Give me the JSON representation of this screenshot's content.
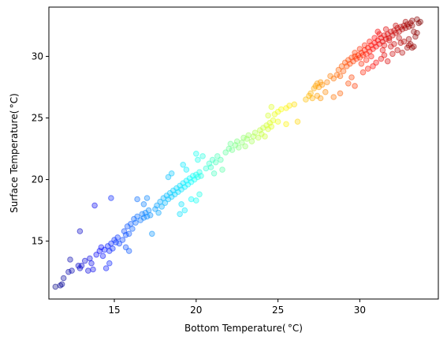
{
  "chart_data": {
    "type": "scatter",
    "xlabel": "Bottom Temperature( °C)",
    "ylabel": "Surface Temperature( °C)",
    "xlim": [
      11.0,
      34.8
    ],
    "ylim": [
      10.3,
      34.0
    ],
    "xticks": [
      15,
      20,
      25,
      30
    ],
    "yticks": [
      15,
      20,
      25,
      30
    ],
    "grid": false,
    "colormap": "jet",
    "color_by": "x",
    "color_range": [
      11.3,
      33.7
    ],
    "points": [
      [
        11.4,
        11.3
      ],
      [
        11.7,
        11.4
      ],
      [
        11.8,
        11.5
      ],
      [
        11.9,
        12.0
      ],
      [
        12.2,
        12.5
      ],
      [
        12.4,
        12.6
      ],
      [
        12.3,
        13.5
      ],
      [
        12.8,
        13.0
      ],
      [
        12.9,
        12.8
      ],
      [
        13.0,
        13.0
      ],
      [
        13.2,
        13.4
      ],
      [
        13.4,
        12.6
      ],
      [
        13.6,
        13.2
      ],
      [
        13.7,
        12.7
      ],
      [
        13.5,
        13.6
      ],
      [
        13.9,
        13.9
      ],
      [
        14.1,
        14.2
      ],
      [
        14.2,
        14.5
      ],
      [
        14.3,
        13.8
      ],
      [
        14.4,
        14.3
      ],
      [
        14.6,
        14.6
      ],
      [
        14.7,
        14.2
      ],
      [
        14.8,
        14.8
      ],
      [
        14.9,
        14.4
      ],
      [
        15.0,
        15.1
      ],
      [
        15.1,
        14.9
      ],
      [
        15.2,
        15.3
      ],
      [
        14.5,
        12.8
      ],
      [
        14.7,
        13.2
      ],
      [
        13.8,
        17.9
      ],
      [
        14.8,
        18.5
      ],
      [
        12.9,
        15.8
      ],
      [
        15.3,
        14.8
      ],
      [
        15.5,
        15.1
      ],
      [
        15.6,
        15.8
      ],
      [
        15.7,
        15.5
      ],
      [
        15.8,
        16.2
      ],
      [
        15.9,
        15.6
      ],
      [
        16.0,
        16.4
      ],
      [
        16.1,
        16.0
      ],
      [
        16.2,
        16.8
      ],
      [
        16.3,
        16.5
      ],
      [
        16.4,
        17.0
      ],
      [
        16.6,
        16.7
      ],
      [
        16.7,
        17.2
      ],
      [
        16.8,
        16.9
      ],
      [
        16.9,
        17.3
      ],
      [
        17.0,
        17.0
      ],
      [
        17.1,
        17.5
      ],
      [
        17.2,
        17.1
      ],
      [
        16.4,
        18.4
      ],
      [
        16.8,
        18.0
      ],
      [
        17.0,
        18.5
      ],
      [
        17.3,
        15.6
      ],
      [
        15.7,
        14.5
      ],
      [
        15.9,
        14.2
      ],
      [
        17.5,
        17.6
      ],
      [
        17.6,
        17.9
      ],
      [
        17.7,
        17.3
      ],
      [
        17.8,
        18.2
      ],
      [
        17.9,
        17.8
      ],
      [
        18.0,
        18.5
      ],
      [
        18.1,
        18.1
      ],
      [
        18.2,
        18.7
      ],
      [
        18.3,
        18.4
      ],
      [
        18.4,
        18.9
      ],
      [
        18.5,
        18.6
      ],
      [
        18.6,
        19.1
      ],
      [
        18.7,
        18.8
      ],
      [
        18.8,
        19.3
      ],
      [
        18.9,
        19.0
      ],
      [
        19.0,
        19.5
      ],
      [
        19.1,
        19.2
      ],
      [
        19.2,
        19.7
      ],
      [
        19.3,
        19.4
      ],
      [
        19.4,
        19.9
      ],
      [
        19.5,
        19.6
      ],
      [
        19.6,
        20.1
      ],
      [
        19.7,
        19.8
      ],
      [
        19.8,
        20.3
      ],
      [
        19.9,
        20.0
      ],
      [
        20.0,
        20.4
      ],
      [
        20.1,
        20.2
      ],
      [
        20.2,
        20.6
      ],
      [
        20.3,
        20.3
      ],
      [
        19.2,
        21.2
      ],
      [
        19.4,
        20.8
      ],
      [
        19.0,
        17.2
      ],
      [
        19.3,
        17.5
      ],
      [
        19.1,
        18.0
      ],
      [
        18.3,
        20.2
      ],
      [
        18.5,
        20.5
      ],
      [
        19.7,
        18.4
      ],
      [
        20.0,
        18.3
      ],
      [
        20.2,
        18.8
      ],
      [
        20.1,
        21.6
      ],
      [
        20.4,
        21.9
      ],
      [
        20.0,
        22.1
      ],
      [
        20.6,
        20.9
      ],
      [
        20.8,
        21.3
      ],
      [
        20.9,
        21.0
      ],
      [
        21.0,
        21.6
      ],
      [
        21.2,
        21.4
      ],
      [
        21.3,
        21.9
      ],
      [
        21.5,
        21.6
      ],
      [
        21.1,
        20.5
      ],
      [
        21.6,
        20.8
      ],
      [
        21.8,
        22.2
      ],
      [
        22.0,
        22.5
      ],
      [
        22.1,
        22.9
      ],
      [
        22.2,
        22.4
      ],
      [
        22.4,
        22.8
      ],
      [
        22.5,
        23.1
      ],
      [
        22.6,
        22.6
      ],
      [
        22.8,
        23.0
      ],
      [
        22.9,
        23.4
      ],
      [
        23.0,
        22.7
      ],
      [
        23.1,
        23.3
      ],
      [
        23.2,
        23.6
      ],
      [
        23.4,
        23.1
      ],
      [
        23.5,
        23.5
      ],
      [
        23.6,
        23.8
      ],
      [
        23.8,
        23.4
      ],
      [
        23.9,
        24.0
      ],
      [
        24.0,
        23.7
      ],
      [
        24.1,
        24.2
      ],
      [
        24.2,
        23.5
      ],
      [
        24.3,
        24.4
      ],
      [
        24.4,
        24.1
      ],
      [
        24.5,
        24.6
      ],
      [
        24.6,
        24.3
      ],
      [
        24.7,
        24.8
      ],
      [
        24.4,
        25.2
      ],
      [
        24.6,
        25.9
      ],
      [
        24.8,
        25.3
      ],
      [
        25.0,
        25.5
      ],
      [
        25.2,
        25.7
      ],
      [
        25.5,
        25.8
      ],
      [
        25.7,
        26.0
      ],
      [
        25.0,
        24.7
      ],
      [
        25.5,
        24.5
      ],
      [
        26.2,
        24.7
      ],
      [
        26.0,
        26.1
      ],
      [
        26.7,
        26.5
      ],
      [
        26.9,
        26.8
      ],
      [
        27.0,
        27.0
      ],
      [
        27.1,
        26.6
      ],
      [
        27.2,
        27.4
      ],
      [
        27.3,
        27.6
      ],
      [
        27.4,
        27.8
      ],
      [
        27.5,
        27.5
      ],
      [
        27.6,
        27.9
      ],
      [
        27.7,
        27.7
      ],
      [
        27.4,
        26.8
      ],
      [
        27.6,
        26.6
      ],
      [
        27.9,
        27.1
      ],
      [
        28.0,
        27.9
      ],
      [
        28.2,
        28.4
      ],
      [
        28.4,
        28.2
      ],
      [
        28.6,
        28.5
      ],
      [
        28.7,
        28.9
      ],
      [
        28.8,
        28.4
      ],
      [
        28.9,
        29.2
      ],
      [
        29.0,
        28.8
      ],
      [
        29.1,
        29.5
      ],
      [
        29.2,
        29.2
      ],
      [
        29.3,
        29.7
      ],
      [
        29.4,
        29.4
      ],
      [
        29.5,
        29.9
      ],
      [
        29.6,
        29.6
      ],
      [
        29.7,
        30.0
      ],
      [
        29.8,
        29.8
      ],
      [
        29.9,
        30.1
      ],
      [
        30.0,
        29.9
      ],
      [
        30.1,
        30.3
      ],
      [
        30.2,
        30.1
      ],
      [
        30.3,
        30.5
      ],
      [
        30.4,
        30.2
      ],
      [
        30.5,
        30.7
      ],
      [
        30.6,
        30.4
      ],
      [
        30.7,
        30.9
      ],
      [
        30.8,
        30.6
      ],
      [
        30.9,
        31.1
      ],
      [
        31.0,
        30.8
      ],
      [
        31.1,
        31.3
      ],
      [
        31.2,
        31.0
      ],
      [
        31.3,
        31.5
      ],
      [
        31.4,
        31.2
      ],
      [
        31.5,
        31.7
      ],
      [
        31.6,
        31.4
      ],
      [
        31.7,
        31.8
      ],
      [
        31.8,
        31.5
      ],
      [
        31.9,
        32.0
      ],
      [
        32.0,
        31.7
      ],
      [
        32.1,
        32.1
      ],
      [
        32.2,
        31.9
      ],
      [
        32.3,
        32.3
      ],
      [
        32.4,
        32.0
      ],
      [
        32.5,
        32.4
      ],
      [
        32.6,
        32.2
      ],
      [
        32.7,
        32.5
      ],
      [
        32.8,
        32.3
      ],
      [
        32.9,
        32.6
      ],
      [
        33.0,
        32.4
      ],
      [
        33.1,
        32.7
      ],
      [
        33.2,
        32.5
      ],
      [
        33.3,
        32.0
      ],
      [
        33.4,
        31.6
      ],
      [
        33.5,
        31.9
      ],
      [
        33.6,
        32.7
      ],
      [
        28.4,
        26.7
      ],
      [
        28.8,
        27.0
      ],
      [
        29.3,
        27.8
      ],
      [
        29.7,
        27.6
      ],
      [
        29.5,
        28.3
      ],
      [
        30.2,
        28.7
      ],
      [
        30.5,
        29.0
      ],
      [
        30.8,
        29.2
      ],
      [
        31.0,
        29.5
      ],
      [
        31.3,
        29.8
      ],
      [
        31.5,
        30.1
      ],
      [
        31.7,
        29.6
      ],
      [
        32.0,
        30.2
      ],
      [
        32.3,
        30.5
      ],
      [
        32.6,
        30.3
      ],
      [
        32.9,
        30.7
      ],
      [
        33.1,
        31.0
      ],
      [
        33.3,
        30.8
      ],
      [
        33.0,
        31.4
      ],
      [
        32.7,
        31.2
      ],
      [
        32.4,
        31.5
      ],
      [
        32.1,
        31.0
      ],
      [
        31.8,
        31.3
      ],
      [
        31.5,
        30.9
      ],
      [
        31.2,
        31.8
      ],
      [
        30.9,
        31.5
      ],
      [
        30.6,
        31.2
      ],
      [
        30.3,
        30.9
      ],
      [
        30.0,
        30.6
      ],
      [
        29.7,
        30.3
      ],
      [
        31.1,
        32.0
      ],
      [
        31.6,
        32.2
      ],
      [
        32.2,
        32.5
      ],
      [
        32.8,
        32.8
      ],
      [
        33.2,
        32.9
      ],
      [
        33.5,
        33.0
      ],
      [
        33.7,
        32.8
      ],
      [
        33.0,
        30.9
      ],
      [
        33.2,
        30.7
      ],
      [
        30.1,
        29.4
      ],
      [
        30.4,
        29.7
      ],
      [
        30.7,
        30.0
      ],
      [
        31.4,
        30.5
      ],
      [
        31.9,
        30.8
      ],
      [
        32.5,
        31.1
      ]
    ]
  }
}
